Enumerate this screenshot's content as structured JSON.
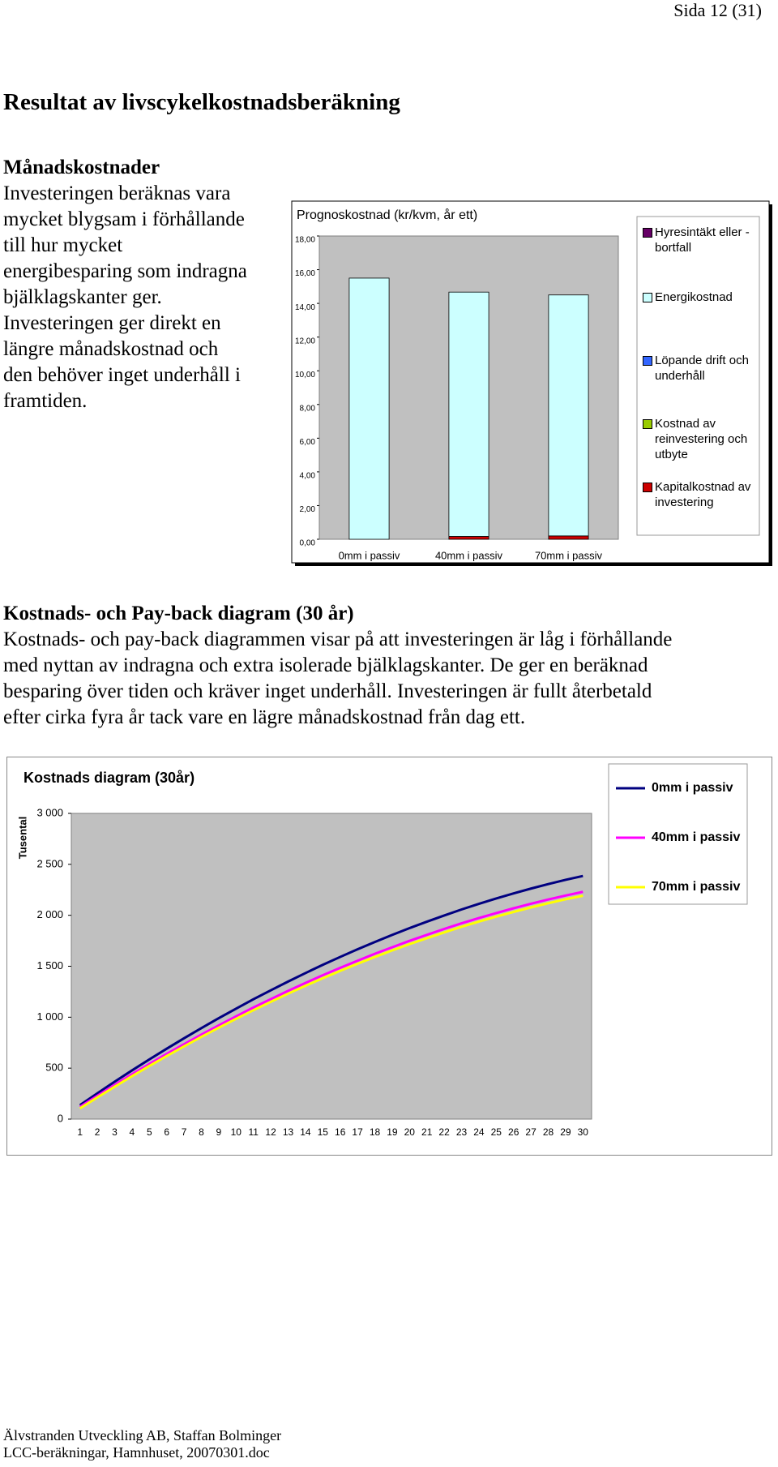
{
  "header": {
    "page_number": "Sida 12 (31)"
  },
  "title": "Resultat av livscykelkostnadsberäkning",
  "sections": [
    {
      "heading": "Månadskostnader",
      "lines": [
        "Investeringen beräknas vara",
        "mycket blygsam i förhållande",
        "till hur mycket",
        "energibesparing som indragna",
        "bjälklagskanter ger.",
        "Investeringen ger direkt en",
        "längre månadskostnad och",
        "den behöver inget underhåll i",
        "framtiden."
      ]
    },
    {
      "heading": "Kostnads- och Pay-back diagram (30 år)",
      "lines": [
        "Kostnads- och pay-back diagrammen visar på att investeringen är låg i förhållande",
        "med nyttan av indragna och extra isolerade bjälklagskanter. De ger en beräknad",
        "besparing över tiden och kräver inget underhåll. Investeringen är fullt återbetald",
        "efter cirka fyra år tack vare en lägre månadskostnad från dag ett."
      ]
    }
  ],
  "chart_data": [
    {
      "type": "stacked_bar",
      "title": "Prognoskostnad (kr/kvm, år ett)",
      "categories": [
        "0mm i passiv",
        "40mm i passiv",
        "70mm i passiv"
      ],
      "series": [
        {
          "name": "Hyresintäkt eller -bortfall",
          "color": "#660066",
          "values": [
            0,
            0,
            0
          ]
        },
        {
          "name": "Energikostnad",
          "color": "#ccffff",
          "values": [
            15.5,
            14.5,
            14.3
          ]
        },
        {
          "name": "Löpande drift och underhåll",
          "color": "#3366ff",
          "values": [
            0,
            0,
            0
          ]
        },
        {
          "name": "Kostnad av reinvestering och utbyte",
          "color": "#99cc00",
          "values": [
            0,
            0,
            0
          ]
        },
        {
          "name": "Kapitalkostnad av investering",
          "color": "#cc0000",
          "values": [
            0,
            0.17,
            0.2
          ]
        }
      ],
      "ylim": [
        0,
        18
      ],
      "yticks": [
        {
          "value": 0,
          "label": "0,00"
        },
        {
          "value": 2,
          "label": "2,00"
        },
        {
          "value": 4,
          "label": "4,00"
        },
        {
          "value": 6,
          "label": "6,00"
        },
        {
          "value": 8,
          "label": "8,00"
        },
        {
          "value": 10,
          "label": "10,00"
        },
        {
          "value": 12,
          "label": "12,00"
        },
        {
          "value": 14,
          "label": "14,00"
        },
        {
          "value": 16,
          "label": "16,00"
        },
        {
          "value": 18,
          "label": "18,00"
        }
      ],
      "plot_background": "#c0c0c0",
      "legend": "right"
    },
    {
      "type": "line",
      "title": "Kostnads diagram (30år)",
      "y_label": "Tusental",
      "categories": [
        "1",
        "2",
        "3",
        "4",
        "5",
        "6",
        "7",
        "8",
        "9",
        "10",
        "11",
        "12",
        "13",
        "14",
        "15",
        "16",
        "17",
        "18",
        "19",
        "20",
        "21",
        "22",
        "23",
        "24",
        "25",
        "26",
        "27",
        "28",
        "29",
        "30"
      ],
      "series": [
        {
          "name": "0mm i passiv",
          "color": "#000080",
          "values": [
            137,
            253,
            367,
            478,
            586,
            691,
            793,
            893,
            990,
            1084,
            1176,
            1264,
            1350,
            1433,
            1514,
            1591,
            1666,
            1738,
            1807,
            1874,
            1937,
            1998,
            2057,
            2112,
            2165,
            2215,
            2262,
            2306,
            2348,
            2386
          ]
        },
        {
          "name": "40mm i passiv",
          "color": "#ff00ff",
          "values": [
            120,
            229,
            336,
            440,
            541,
            640,
            735,
            829,
            920,
            1008,
            1095,
            1177,
            1258,
            1336,
            1412,
            1484,
            1554,
            1622,
            1686,
            1749,
            1808,
            1866,
            1921,
            1973,
            2022,
            2069,
            2113,
            2155,
            2194,
            2230
          ]
        },
        {
          "name": "70mm i passiv",
          "color": "#ffff00",
          "values": [
            105,
            213,
            318,
            421,
            522,
            619,
            714,
            807,
            897,
            984,
            1069,
            1151,
            1231,
            1308,
            1383,
            1454,
            1524,
            1591,
            1655,
            1717,
            1775,
            1832,
            1887,
            1938,
            1987,
            2033,
            2077,
            2118,
            2157,
            2192
          ]
        }
      ],
      "ylim": [
        0,
        3000
      ],
      "yticks": [
        0,
        500,
        {
          "value": 1000,
          "label": "1 000"
        },
        {
          "value": 1500,
          "label": "1 500"
        },
        {
          "value": 2000,
          "label": "2 000"
        },
        {
          "value": 2500,
          "label": "2 500"
        },
        {
          "value": 3000,
          "label": "3 000"
        }
      ],
      "plot_background": "#c0c0c0",
      "legend": "right"
    }
  ]
}
